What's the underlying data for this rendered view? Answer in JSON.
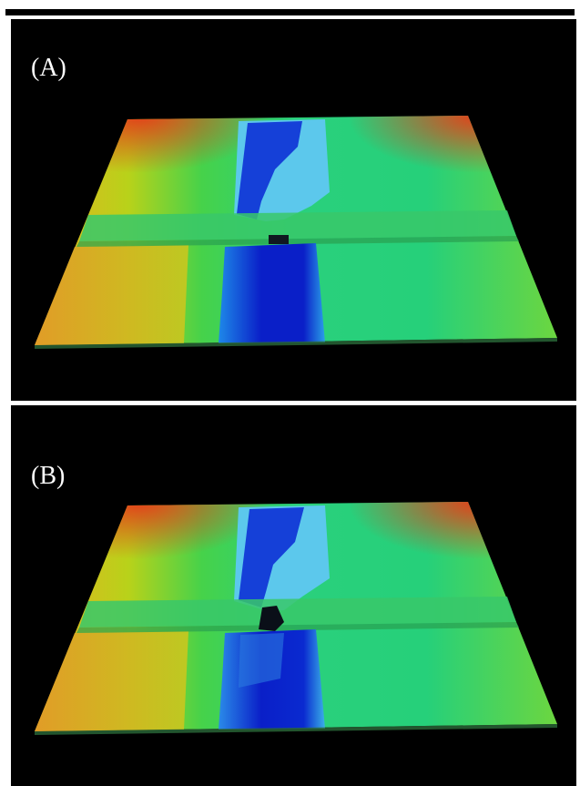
{
  "panels": [
    {
      "label": "(A)",
      "variant": "before-breach"
    },
    {
      "label": "(B)",
      "variant": "after-breach"
    }
  ],
  "colors": {
    "background": "#000000",
    "low_elevation": "#0a1fc8",
    "mid_low": "#1e88e8",
    "mid": "#2ecf7a",
    "mid_high": "#b8d21a",
    "high_elevation": "#e3401a"
  }
}
